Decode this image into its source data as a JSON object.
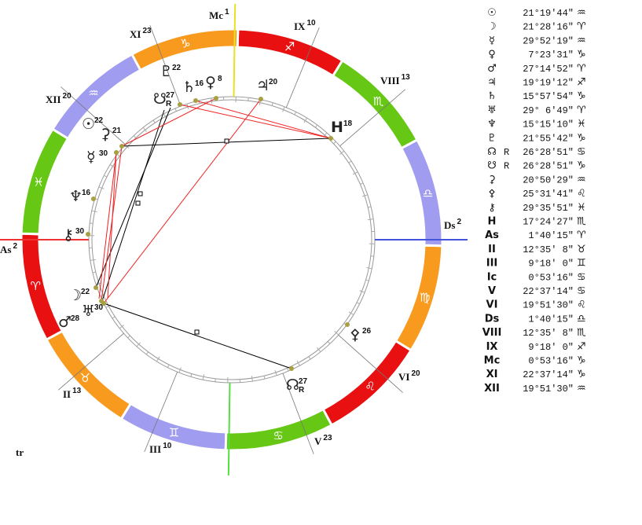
{
  "wheel": {
    "zodiac": [
      "♈",
      "♉",
      "♊",
      "♋",
      "♌",
      "♍",
      "♎",
      "♏",
      "♐",
      "♑",
      "♒",
      "♓"
    ],
    "cusps": [
      {
        "label": "As",
        "degree": 2
      },
      {
        "label": "II",
        "degree": 13
      },
      {
        "label": "III",
        "degree": 10
      },
      {
        "label": "V",
        "degree": 23
      },
      {
        "label": "VI",
        "degree": 20
      },
      {
        "label": "Ds",
        "degree": 2
      },
      {
        "label": "VIII",
        "degree": 13
      },
      {
        "label": "IX",
        "degree": 10
      },
      {
        "label": "Mc",
        "degree": 1
      },
      {
        "label": "XI",
        "degree": 23
      },
      {
        "label": "XII",
        "degree": 20
      }
    ],
    "planets": [
      {
        "glyph": "☉",
        "degree": 22
      },
      {
        "glyph": "☽",
        "degree": 22
      },
      {
        "glyph": "☿",
        "degree": 30
      },
      {
        "glyph": "♀",
        "degree": 8
      },
      {
        "glyph": "♂",
        "degree": 28
      },
      {
        "glyph": "♃",
        "degree": 20
      },
      {
        "glyph": "♄",
        "degree": 16
      },
      {
        "glyph": "♅",
        "degree": 30
      },
      {
        "glyph": "♆",
        "degree": 16
      },
      {
        "glyph": "♇",
        "degree": 22
      },
      {
        "glyph": "☊",
        "degree": 27,
        "retro": "R"
      },
      {
        "glyph": "☋",
        "degree": 27,
        "retro": "R"
      },
      {
        "glyph": "⚳",
        "degree": 21
      },
      {
        "glyph": "⚴",
        "degree": 26
      },
      {
        "glyph": "⚷",
        "degree": 30
      },
      {
        "glyph": "H",
        "degree": 18
      }
    ],
    "footer": "tr"
  },
  "table": {
    "rows": [
      {
        "glyph": "☉",
        "position": "21°19'44\"",
        "sign": "♒"
      },
      {
        "glyph": "☽",
        "position": "21°28'16\"",
        "sign": "♈"
      },
      {
        "glyph": "☿",
        "position": "29°52'19\"",
        "sign": "♒"
      },
      {
        "glyph": "♀",
        "position": " 7°23'31\"",
        "sign": "♑"
      },
      {
        "glyph": "♂",
        "position": "27°14'52\"",
        "sign": "♈"
      },
      {
        "glyph": "♃",
        "position": "19°19'12\"",
        "sign": "♐"
      },
      {
        "glyph": "♄",
        "position": "15°57'54\"",
        "sign": "♑"
      },
      {
        "glyph": "♅",
        "position": "29° 6'49\"",
        "sign": "♈"
      },
      {
        "glyph": "♆",
        "position": "15°15'10\"",
        "sign": "♓"
      },
      {
        "glyph": "♇",
        "position": "21°55'42\"",
        "sign": "♑"
      },
      {
        "glyph": "☊",
        "retro": "R",
        "position": "26°28'51\"",
        "sign": "♋"
      },
      {
        "glyph": "☋",
        "retro": "R",
        "position": "26°28'51\"",
        "sign": "♑"
      },
      {
        "glyph": "⚳",
        "position": "20°50'29\"",
        "sign": "♒"
      },
      {
        "glyph": "⚴",
        "position": "25°31'41\"",
        "sign": "♌"
      },
      {
        "glyph": "⚷",
        "position": "29°35'51\"",
        "sign": "♓"
      },
      {
        "glyph": "H",
        "position": "17°24'27\"",
        "sign": "♏"
      },
      {
        "glyph": "As",
        "position": " 1°40'15\"",
        "sign": "♈"
      },
      {
        "glyph": "II",
        "position": "12°35' 8\"",
        "sign": "♉"
      },
      {
        "glyph": "III",
        "position": " 9°18' 0\"",
        "sign": "♊"
      },
      {
        "glyph": "Ic",
        "position": " 0°53'16\"",
        "sign": "♋"
      },
      {
        "glyph": "V",
        "position": "22°37'14\"",
        "sign": "♋"
      },
      {
        "glyph": "VI",
        "position": "19°51'30\"",
        "sign": "♌"
      },
      {
        "glyph": "Ds",
        "position": " 1°40'15\"",
        "sign": "♎"
      },
      {
        "glyph": "VIII",
        "position": "12°35' 8\"",
        "sign": "♏"
      },
      {
        "glyph": "IX",
        "position": " 9°18' 0\"",
        "sign": "♐"
      },
      {
        "glyph": "Mc",
        "position": " 0°53'16\"",
        "sign": "♑"
      },
      {
        "glyph": "XI",
        "position": "22°37'14\"",
        "sign": "♑"
      },
      {
        "glyph": "XII",
        "position": "19°51'30\"",
        "sign": "♒"
      }
    ]
  }
}
